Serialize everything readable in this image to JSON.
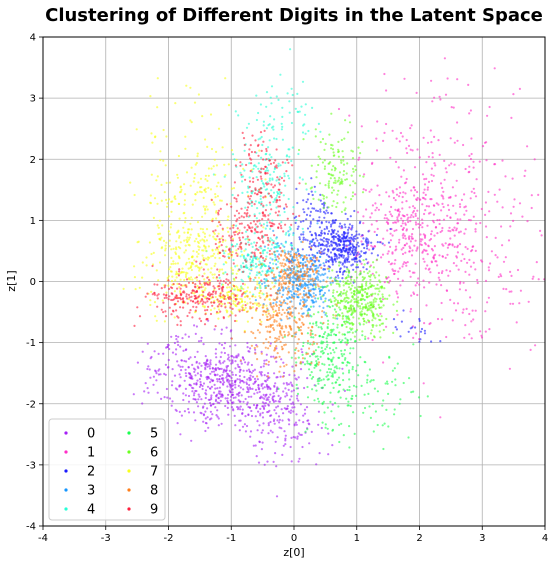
{
  "chart_data": {
    "type": "scatter",
    "title": "Clustering of Different Digits in the Latent Space",
    "xlabel": "z[0]",
    "ylabel": "z[1]",
    "xlim": [
      -4,
      4
    ],
    "ylim": [
      -4,
      4
    ],
    "xticks": [
      "-4",
      "-3",
      "-2",
      "-1",
      "0",
      "1",
      "2",
      "3",
      "4"
    ],
    "yticks": [
      "-4",
      "-3",
      "-2",
      "-1",
      "0",
      "1",
      "2",
      "3",
      "4"
    ],
    "grid": true,
    "legend_position": "lower-left",
    "legend_columns": 2,
    "series": [
      {
        "name": "0",
        "color": "#a51ff5",
        "clusters": [
          {
            "cx": -1.0,
            "cy": -1.7,
            "sx": 0.55,
            "sy": 0.35,
            "n": 520
          },
          {
            "cx": -0.2,
            "cy": -2.2,
            "sx": 0.35,
            "sy": 0.4,
            "n": 160
          },
          {
            "cx": -1.5,
            "cy": -1.3,
            "sx": 0.4,
            "sy": 0.25,
            "n": 120
          }
        ]
      },
      {
        "name": "1",
        "color": "#ff2ec7",
        "clusters": [
          {
            "cx": 1.9,
            "cy": 0.8,
            "sx": 0.45,
            "sy": 0.55,
            "n": 340
          },
          {
            "cx": 2.7,
            "cy": 0.5,
            "sx": 0.75,
            "sy": 0.9,
            "n": 240
          },
          {
            "cx": 2.3,
            "cy": 2.0,
            "sx": 0.8,
            "sy": 0.8,
            "n": 110
          }
        ]
      },
      {
        "name": "2",
        "color": "#1a1aff",
        "clusters": [
          {
            "cx": 0.75,
            "cy": 0.55,
            "sx": 0.25,
            "sy": 0.22,
            "n": 380
          },
          {
            "cx": 0.3,
            "cy": 0.95,
            "sx": 0.2,
            "sy": 0.35,
            "n": 90
          },
          {
            "cx": 1.8,
            "cy": -0.8,
            "sx": 0.2,
            "sy": 0.15,
            "n": 20
          }
        ]
      },
      {
        "name": "3",
        "color": "#1596ff",
        "clusters": [
          {
            "cx": 0.15,
            "cy": -0.05,
            "sx": 0.25,
            "sy": 0.25,
            "n": 320
          },
          {
            "cx": -0.1,
            "cy": 0.4,
            "sx": 0.25,
            "sy": 0.2,
            "n": 70
          }
        ]
      },
      {
        "name": "4",
        "color": "#26ffd6",
        "clusters": [
          {
            "cx": -0.45,
            "cy": 1.7,
            "sx": 0.25,
            "sy": 0.55,
            "n": 180
          },
          {
            "cx": -0.6,
            "cy": 0.35,
            "sx": 0.25,
            "sy": 0.25,
            "n": 170
          },
          {
            "cx": -0.1,
            "cy": 2.7,
            "sx": 0.25,
            "sy": 0.4,
            "n": 40
          }
        ]
      },
      {
        "name": "5",
        "color": "#1aff4f",
        "clusters": [
          {
            "cx": 0.55,
            "cy": -1.1,
            "sx": 0.25,
            "sy": 0.4,
            "n": 240
          },
          {
            "cx": 1.0,
            "cy": -1.9,
            "sx": 0.45,
            "sy": 0.4,
            "n": 110
          }
        ]
      },
      {
        "name": "6",
        "color": "#6bff1f",
        "clusters": [
          {
            "cx": 1.05,
            "cy": -0.3,
            "sx": 0.25,
            "sy": 0.25,
            "n": 380
          },
          {
            "cx": 0.65,
            "cy": 1.85,
            "sx": 0.2,
            "sy": 0.35,
            "n": 130
          }
        ]
      },
      {
        "name": "7",
        "color": "#f7ff1a",
        "clusters": [
          {
            "cx": -1.5,
            "cy": 0.3,
            "sx": 0.45,
            "sy": 0.35,
            "n": 300
          },
          {
            "cx": -1.6,
            "cy": 1.4,
            "sx": 0.45,
            "sy": 0.7,
            "n": 210
          },
          {
            "cx": -0.9,
            "cy": -0.3,
            "sx": 0.3,
            "sy": 0.15,
            "n": 120
          }
        ]
      },
      {
        "name": "8",
        "color": "#ff7e1a",
        "clusters": [
          {
            "cx": -0.2,
            "cy": -0.6,
            "sx": 0.28,
            "sy": 0.4,
            "n": 290
          },
          {
            "cx": 0.05,
            "cy": 0.15,
            "sx": 0.2,
            "sy": 0.2,
            "n": 150
          }
        ]
      },
      {
        "name": "9",
        "color": "#ff1f3d",
        "clusters": [
          {
            "cx": -1.5,
            "cy": -0.25,
            "sx": 0.4,
            "sy": 0.2,
            "n": 260
          },
          {
            "cx": -0.7,
            "cy": 0.8,
            "sx": 0.3,
            "sy": 0.3,
            "n": 190
          },
          {
            "cx": -0.5,
            "cy": 1.75,
            "sx": 0.2,
            "sy": 0.35,
            "n": 110
          }
        ]
      }
    ]
  }
}
